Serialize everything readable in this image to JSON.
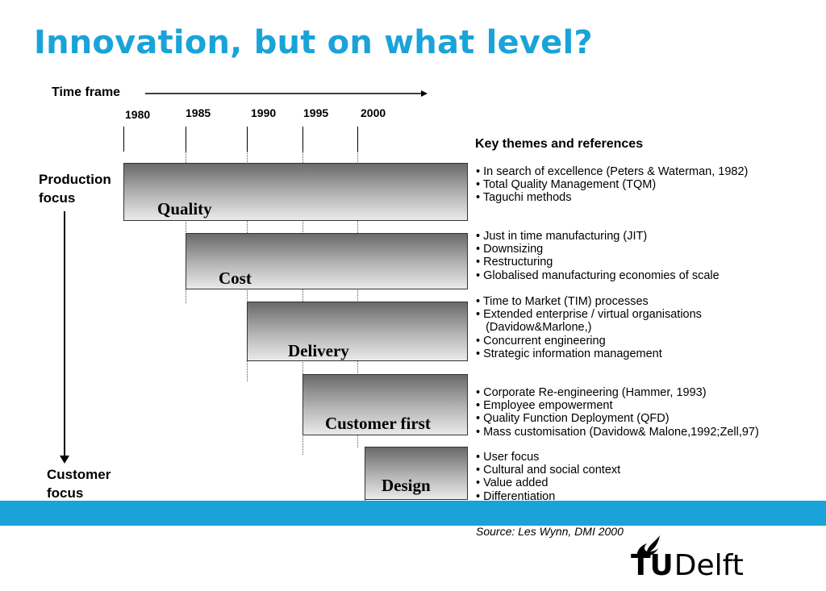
{
  "title": "Innovation, but on what level?",
  "timeline": {
    "label": "Time frame",
    "years": [
      "1980",
      "1985",
      "1990",
      "1995",
      "2000"
    ]
  },
  "axis": {
    "top_label": [
      "Production",
      "focus"
    ],
    "bottom_label": [
      "Customer",
      "focus"
    ]
  },
  "bars": [
    {
      "label": "Quality"
    },
    {
      "label": "Cost"
    },
    {
      "label": "Delivery"
    },
    {
      "label": "Customer first"
    },
    {
      "label": "Design"
    }
  ],
  "key": {
    "heading": "Key themes and references",
    "groups": [
      [
        "• In search of excellence (Peters & Waterman, 1982)",
        "• Total Quality Management (TQM)",
        "• Taguchi methods"
      ],
      [
        "• Just in time manufacturing (JIT)",
        "• Downsizing",
        "• Restructuring",
        "• Globalised manufacturing  economies of scale"
      ],
      [
        "• Time to Market (TIM) processes",
        "• Extended enterprise / virtual organisations",
        "   (Davidow&Marlone,)",
        "• Concurrent engineering",
        "• Strategic information management"
      ],
      [
        "• Corporate Re-engineering (Hammer, 1993)",
        "• Employee empowerment",
        "• Quality Function Deployment (QFD)",
        "• Mass customisation (Davidow& Malone,1992;Zell,97)"
      ],
      [
        "• User focus",
        "• Cultural and social context",
        "• Value added",
        "• Differentiation"
      ]
    ]
  },
  "source": "Source: Les Wynn, DMI 2000",
  "logo": {
    "text_tu": "TU",
    "text_delft": "Delft",
    "icon": "flame-icon"
  },
  "colors": {
    "accent": "#1aa3d8",
    "bar_dark": "#6a6a6a",
    "bar_light": "#eaeaea"
  }
}
